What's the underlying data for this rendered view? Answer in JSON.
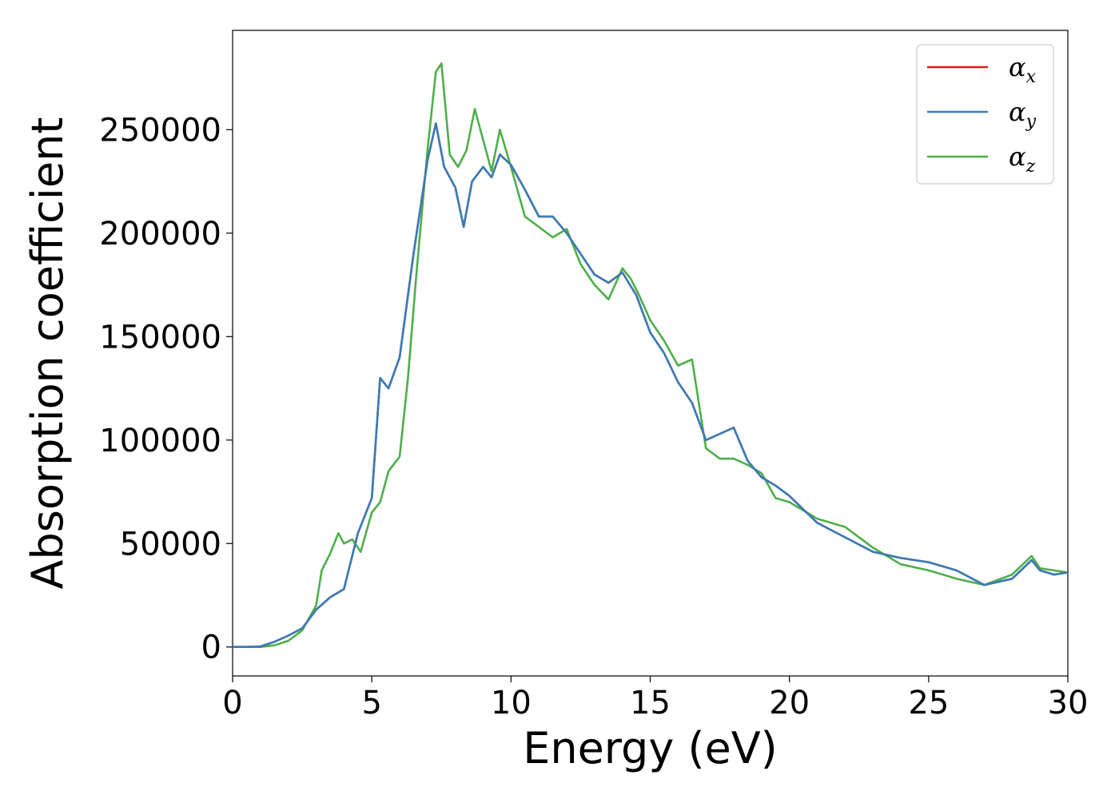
{
  "chart_data": {
    "type": "line",
    "title": "",
    "xlabel": "Energy (eV)",
    "ylabel": "Absorption coefficient",
    "xlim": [
      0,
      30
    ],
    "ylim": [
      -14000,
      298000
    ],
    "xticks": [
      0,
      5,
      10,
      15,
      20,
      25,
      30
    ],
    "yticks": [
      0,
      50000,
      100000,
      150000,
      200000,
      250000
    ],
    "grid": false,
    "legend_position": "top-right",
    "series": [
      {
        "name": "α",
        "subscript": "x",
        "color": "#e41a1c",
        "x": [
          0,
          0.5,
          1,
          1.5,
          2,
          2.5,
          3,
          3.5,
          4,
          4.5,
          5,
          5.3,
          5.6,
          6,
          6.5,
          7,
          7.3,
          7.6,
          8,
          8.3,
          8.6,
          9,
          9.3,
          9.6,
          10,
          10.5,
          11,
          11.5,
          12,
          12.5,
          13,
          13.5,
          14,
          14.5,
          15,
          15.5,
          16,
          16.5,
          17,
          17.5,
          18,
          18.5,
          19,
          19.5,
          20,
          21,
          22,
          23,
          24,
          25,
          26,
          27,
          28,
          28.7,
          29,
          29.5,
          30
        ],
        "values": [
          0,
          0,
          300,
          2500,
          5500,
          9000,
          18000,
          24000,
          28000,
          55000,
          72000,
          130000,
          125000,
          140000,
          190000,
          235000,
          253000,
          232000,
          222000,
          203000,
          225000,
          232000,
          227000,
          238000,
          233000,
          221000,
          208000,
          208000,
          200000,
          190000,
          180000,
          176000,
          181000,
          170000,
          152000,
          142000,
          128000,
          118000,
          100000,
          103000,
          106000,
          90000,
          82000,
          78000,
          73000,
          60000,
          53000,
          46000,
          43000,
          41000,
          37000,
          30000,
          33000,
          42000,
          37000,
          35000,
          36000
        ]
      },
      {
        "name": "α",
        "subscript": "y",
        "color": "#377eb8",
        "x": [
          0,
          0.5,
          1,
          1.5,
          2,
          2.5,
          3,
          3.5,
          4,
          4.5,
          5,
          5.3,
          5.6,
          6,
          6.5,
          7,
          7.3,
          7.6,
          8,
          8.3,
          8.6,
          9,
          9.3,
          9.6,
          10,
          10.5,
          11,
          11.5,
          12,
          12.5,
          13,
          13.5,
          14,
          14.5,
          15,
          15.5,
          16,
          16.5,
          17,
          17.5,
          18,
          18.5,
          19,
          19.5,
          20,
          21,
          22,
          23,
          24,
          25,
          26,
          27,
          28,
          28.7,
          29,
          29.5,
          30
        ],
        "values": [
          0,
          0,
          300,
          2500,
          5500,
          9000,
          18000,
          24000,
          28000,
          55000,
          72000,
          130000,
          125000,
          140000,
          190000,
          235000,
          253000,
          232000,
          222000,
          203000,
          225000,
          232000,
          227000,
          238000,
          233000,
          221000,
          208000,
          208000,
          200000,
          190000,
          180000,
          176000,
          181000,
          170000,
          152000,
          142000,
          128000,
          118000,
          100000,
          103000,
          106000,
          90000,
          82000,
          78000,
          73000,
          60000,
          53000,
          46000,
          43000,
          41000,
          37000,
          30000,
          33000,
          42000,
          37000,
          35000,
          36000
        ]
      },
      {
        "name": "α",
        "subscript": "z",
        "color": "#4daf4a",
        "x": [
          0,
          0.5,
          1,
          1.5,
          2,
          2.5,
          3,
          3.2,
          3.5,
          3.8,
          4,
          4.3,
          4.6,
          5,
          5.3,
          5.6,
          6,
          6.3,
          6.6,
          7,
          7.3,
          7.5,
          7.8,
          8.1,
          8.4,
          8.7,
          9,
          9.3,
          9.6,
          10,
          10.5,
          11,
          11.5,
          12,
          12.5,
          13,
          13.5,
          14,
          14.3,
          14.6,
          15,
          15.5,
          16,
          16.5,
          17,
          17.5,
          18,
          18.5,
          19,
          19.5,
          20,
          21,
          22,
          23,
          24,
          25,
          26,
          27,
          28,
          28.7,
          29,
          29.5,
          30
        ],
        "values": [
          0,
          0,
          0,
          800,
          3000,
          8000,
          20000,
          37000,
          45000,
          55000,
          50000,
          52000,
          46000,
          65000,
          70000,
          85000,
          92000,
          130000,
          180000,
          240000,
          278000,
          282000,
          238000,
          232000,
          240000,
          260000,
          245000,
          230000,
          250000,
          232000,
          208000,
          203000,
          198000,
          202000,
          185000,
          175000,
          168000,
          183000,
          178000,
          170000,
          158000,
          148000,
          136000,
          139000,
          96000,
          91000,
          91000,
          88000,
          84000,
          72000,
          70000,
          62000,
          58000,
          48000,
          40000,
          37000,
          33000,
          30000,
          35000,
          44000,
          38000,
          37000,
          36000
        ]
      }
    ]
  }
}
